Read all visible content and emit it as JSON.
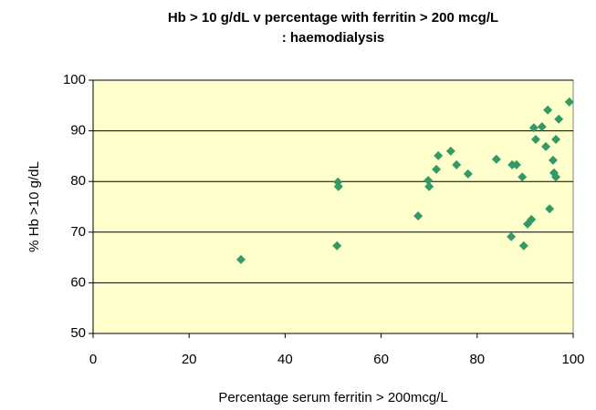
{
  "chart_data": {
    "type": "scatter",
    "title": "Hb > 10 g/dL v percentage with ferritin > 200 mcg/L",
    "subtitle": ": haemodialysis",
    "x_label": "Percentage serum ferritin > 200mcg/L",
    "y_label": "% Hb >10 g/dL",
    "color": "#339966",
    "background": "#ffffcc",
    "grid": true,
    "xlim": [
      0,
      100
    ],
    "xticks": [
      0,
      20,
      40,
      60,
      80,
      100
    ],
    "ylim": [
      50,
      100
    ],
    "yticks": [
      50,
      60,
      70,
      80,
      90,
      100
    ],
    "x": [
      30.8,
      51,
      51.1,
      50.8,
      67.7,
      69.8,
      70,
      71.5,
      71.9,
      74.5,
      75.7,
      78.1,
      84,
      87.3,
      88.2,
      87.1,
      89.4,
      89.7,
      90.5,
      91.3,
      91.8,
      92.2,
      93.5,
      94.3,
      94.7,
      95.1,
      95.8,
      96,
      96.4,
      96.4,
      97,
      99.2
    ],
    "values": [
      64.6,
      79.9,
      79,
      67.3,
      73.2,
      80.2,
      79,
      82.4,
      85.1,
      86,
      83.3,
      81.5,
      84.4,
      83.3,
      83.3,
      69.1,
      80.9,
      67.3,
      71.6,
      72.5,
      90.6,
      88.3,
      90.8,
      86.9,
      94.1,
      74.6,
      84.2,
      81.7,
      80.9,
      88.3,
      92.3,
      95.7
    ]
  }
}
